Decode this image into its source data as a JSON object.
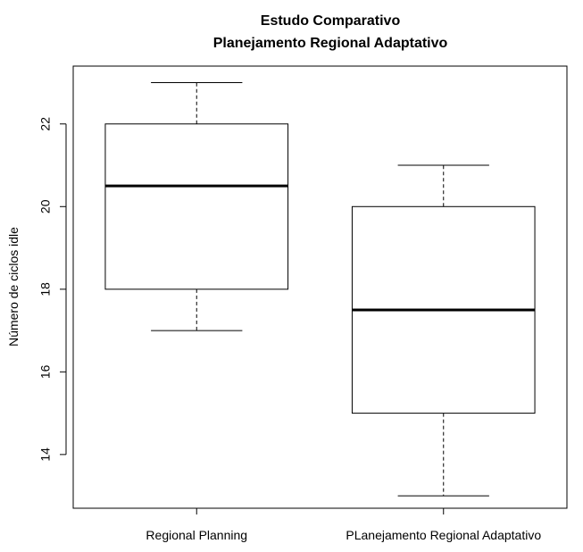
{
  "chart_data": {
    "type": "boxplot",
    "title": "Estudo Comparativo",
    "subtitle": "Planejamento Regional Adaptativo",
    "xlabel": "",
    "ylabel": "Número de ciclos idle",
    "ylim": [
      12.7,
      23.4
    ],
    "yticks": [
      14,
      16,
      18,
      20,
      22
    ],
    "grid": false,
    "categories": [
      "Regional Planning",
      "PLanejamento Regional Adaptativo"
    ],
    "boxes": [
      {
        "category": "Regional Planning",
        "whisker_low": 17,
        "q1": 18,
        "median": 20.5,
        "q3": 22,
        "whisker_high": 23
      },
      {
        "category": "PLanejamento Regional Adaptativo",
        "whisker_low": 13,
        "q1": 15,
        "median": 17.5,
        "q3": 20,
        "whisker_high": 21
      }
    ]
  }
}
